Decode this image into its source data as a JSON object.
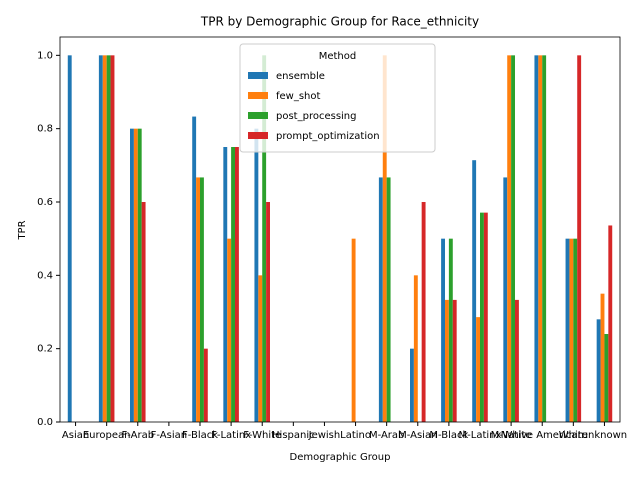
{
  "chart_data": {
    "type": "bar",
    "title": "TPR by Demographic Group for Race_ethnicity",
    "xlabel": "Demographic Group",
    "ylabel": "TPR",
    "categories": [
      "Asian",
      "European",
      "F-Arab",
      "F-Asian",
      "F-Black",
      "F-Latinx",
      "F-White",
      "Hispanic",
      "Jewish",
      "Latino",
      "M-Arab",
      "M-Asian",
      "M-Black",
      "M-Latinx",
      "M-White",
      "Native American",
      "White",
      "unknown"
    ],
    "series": [
      {
        "name": "ensemble",
        "color": "#1f77b4",
        "values": [
          1.0,
          1.0,
          0.8,
          0,
          0.833,
          0.75,
          0.8,
          0,
          0,
          0,
          0.667,
          0.2,
          0.5,
          0.714,
          0.667,
          1.0,
          0.5,
          0.28
        ]
      },
      {
        "name": "few_shot",
        "color": "#ff7f0e",
        "values": [
          0,
          1.0,
          0.8,
          0,
          0.667,
          0.5,
          0.4,
          0,
          0,
          0.5,
          1.0,
          0.4,
          0.333,
          0.286,
          1.0,
          1.0,
          0.5,
          0.35
        ]
      },
      {
        "name": "post_processing",
        "color": "#2ca02c",
        "values": [
          0,
          1.0,
          0.8,
          0,
          0.667,
          0.75,
          1.0,
          0,
          0,
          0,
          0.667,
          0,
          0.5,
          0.571,
          1.0,
          1.0,
          0.5,
          0.24
        ]
      },
      {
        "name": "prompt_optimization",
        "color": "#d62728",
        "values": [
          0,
          1.0,
          0.6,
          0,
          0.2,
          0.75,
          0.6,
          0,
          0,
          0,
          0,
          0.6,
          0.333,
          0.571,
          0.333,
          0,
          1.0,
          0.536
        ]
      }
    ],
    "legend_title": "Method",
    "legend": "upper center",
    "ylim": [
      0,
      1.05
    ],
    "yticks": [
      {
        "value": 0,
        "label": "0.0"
      },
      {
        "value": 0.2,
        "label": "0.2"
      },
      {
        "value": 0.4,
        "label": "0.4"
      },
      {
        "value": 0.6,
        "label": "0.6"
      },
      {
        "value": 0.8,
        "label": "0.8"
      },
      {
        "value": 1.0,
        "label": "1.0"
      }
    ]
  }
}
